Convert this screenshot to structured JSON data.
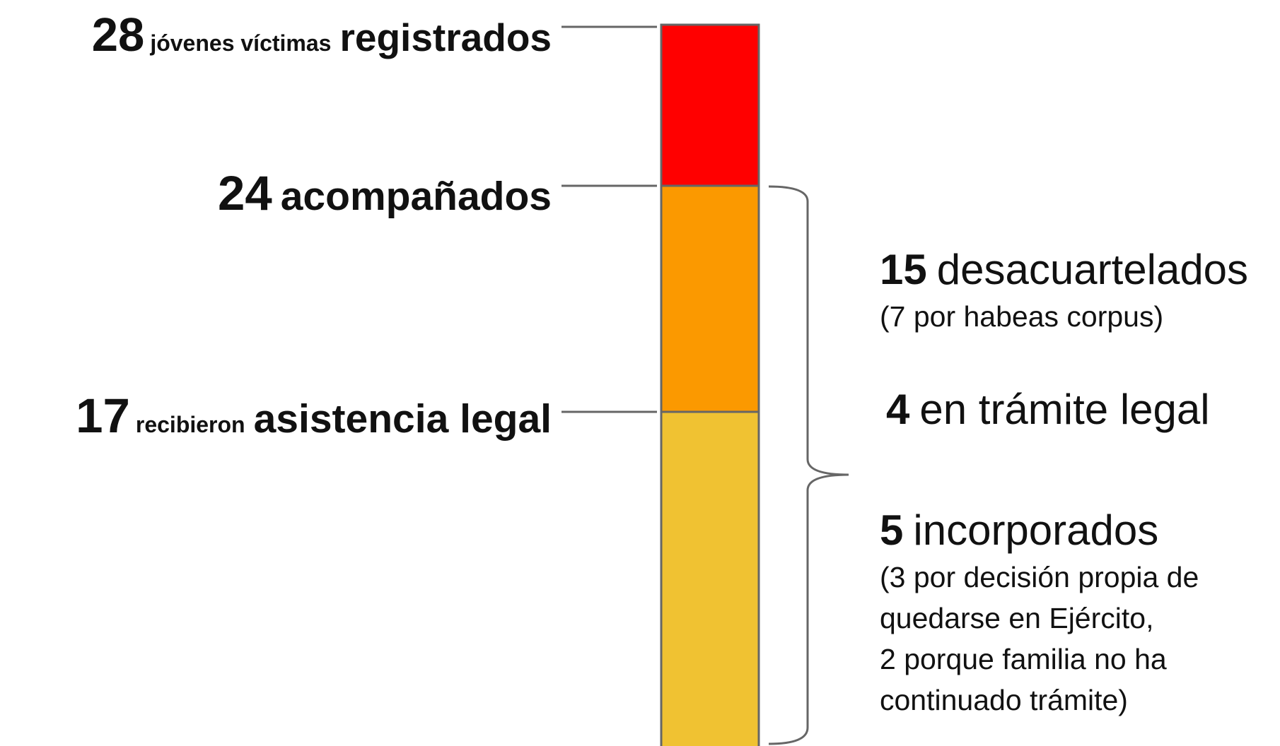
{
  "levels": [
    {
      "number": "28",
      "small": "jóvenes víctimas",
      "label": "registrados"
    },
    {
      "number": "24",
      "label": "acompañados"
    },
    {
      "number": "17",
      "small": "recibieron",
      "label": "asistencia legal"
    }
  ],
  "outcomes": [
    {
      "number": "15",
      "label": "desacuartelados",
      "note": [
        "(7 por habeas corpus)"
      ]
    },
    {
      "number": "4",
      "label": "en trámite legal"
    },
    {
      "number": "5",
      "label": "incorporados",
      "note": [
        "(3 por decisión propia de",
        "quedarse en Ejército,",
        "2 porque familia no ha",
        "continuado trámite)"
      ]
    }
  ]
}
